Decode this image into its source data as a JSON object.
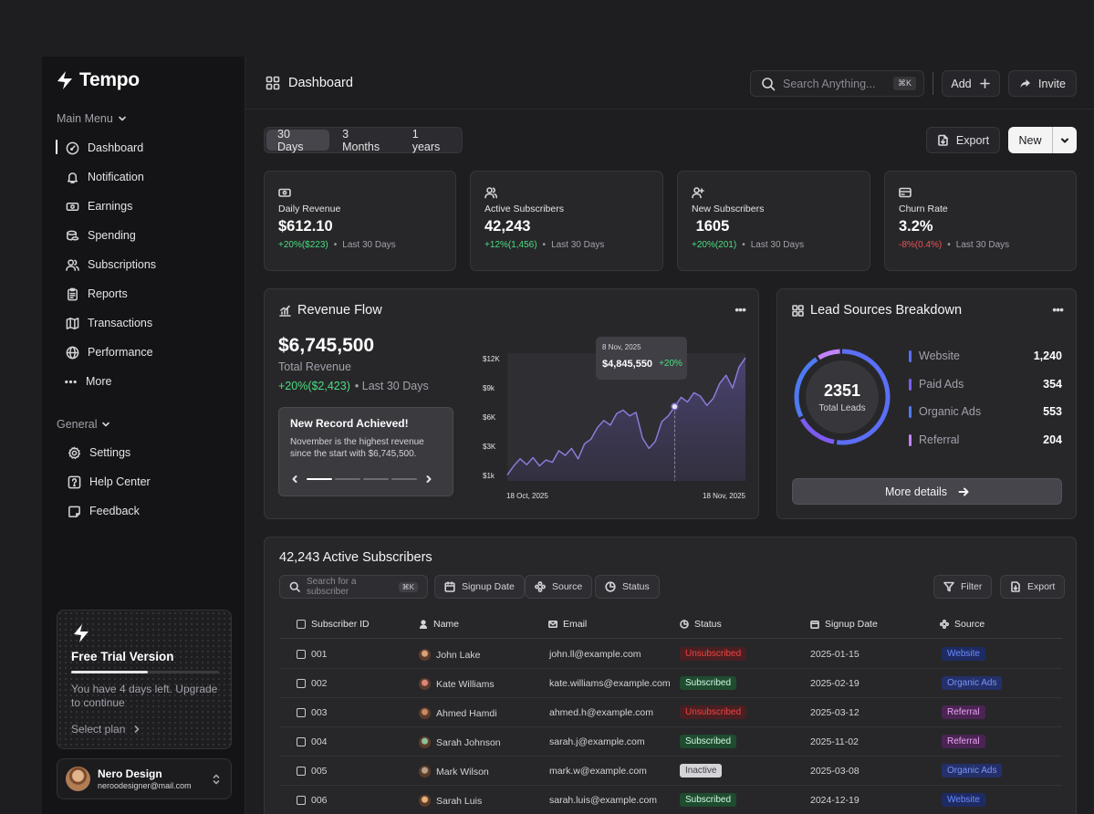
{
  "app": {
    "name": "Tempo"
  },
  "sidebar": {
    "main_menu_label": "Main Menu",
    "items": [
      {
        "label": "Dashboard",
        "icon": "dashboard-icon"
      },
      {
        "label": "Notification",
        "icon": "bell-icon"
      },
      {
        "label": "Earnings",
        "icon": "money-icon"
      },
      {
        "label": "Spending",
        "icon": "coins-icon"
      },
      {
        "label": "Subscriptions",
        "icon": "users-icon"
      },
      {
        "label": "Reports",
        "icon": "clipboard-icon"
      },
      {
        "label": "Transactions",
        "icon": "map-icon"
      },
      {
        "label": "Performance",
        "icon": "globe-icon"
      },
      {
        "label": "More",
        "icon": "more-icon"
      }
    ],
    "general_label": "General",
    "general_items": [
      {
        "label": "Settings",
        "icon": "gear-icon"
      },
      {
        "label": "Help Center",
        "icon": "help-icon"
      },
      {
        "label": "Feedback",
        "icon": "feedback-icon"
      }
    ],
    "trial": {
      "title": "Free Trial Version",
      "progress": 0.52,
      "text": "You have 4 days left. Upgrade to continue",
      "link": "Select plan"
    },
    "user": {
      "name": "Nero Design",
      "email": "neroodesigner@mail.com"
    }
  },
  "header": {
    "title": "Dashboard",
    "search_placeholder": "Search Anything...",
    "search_shortcut": "⌘K",
    "add_label": "Add",
    "invite_label": "Invite"
  },
  "toolbar": {
    "ranges": [
      "30 Days",
      "3 Months",
      "1 years"
    ],
    "export_label": "Export",
    "new_label": "New"
  },
  "kpis": [
    {
      "label": "Daily Revenue",
      "value": "$612.10",
      "change": "+20%($223)",
      "period": "Last 30 Days",
      "trend": "up"
    },
    {
      "label": "Active Subscribers",
      "value": "42,243",
      "change": "+12%(1,456)",
      "period": "Last 30 Days",
      "trend": "up"
    },
    {
      "label": "New Subscribers",
      "value": " 1605",
      "change": "+20%(201)",
      "period": "Last 30 Days",
      "trend": "up"
    },
    {
      "label": "Churn Rate",
      "value": "3.2%",
      "change": "-8%(0.4%)",
      "period": "Last 30 Days",
      "trend": "down"
    }
  ],
  "revenue": {
    "title": "Revenue Flow",
    "amount": "$6,745,500",
    "amount_label": "Total Revenue",
    "change": "+20%($2,423)",
    "period": "• Last 30 Days",
    "record_title": "New Record Achieved!",
    "record_text": "November is the highest revenue since the start with $6,745,500.",
    "tooltip_date": "8 Nov, 2025",
    "tooltip_value": "$4,845,550",
    "tooltip_change": "+20%"
  },
  "chart_data": {
    "type": "area",
    "yticks": [
      "$12K",
      "$9k",
      "$6K",
      "$3K",
      "$1k"
    ],
    "ylim": [
      1000,
      12000
    ],
    "xlabels": [
      "18 Oct, 2025",
      "18 Nov, 2025"
    ],
    "values": [
      1500,
      2300,
      2900,
      2400,
      3000,
      2300,
      2800,
      2600,
      3600,
      3200,
      3800,
      2900,
      4200,
      4600,
      5600,
      6200,
      5800,
      6800,
      7100,
      6600,
      6900,
      4700,
      3800,
      4400,
      6100,
      6600,
      7400,
      8200,
      7800,
      8600,
      8300,
      7500,
      8100,
      9400,
      10100,
      9000,
      10800,
      11600
    ],
    "highlight_index": 26,
    "color": "#8b7bd8"
  },
  "leads": {
    "title": "Lead Sources Breakdown",
    "total": "2351",
    "total_label": "Total Leads",
    "sources": [
      {
        "name": "Website",
        "value": "1,240",
        "color": "#5b6ef5"
      },
      {
        "name": "Paid Ads",
        "value": "354",
        "color": "#7c5cf0"
      },
      {
        "name": "Organic Ads",
        "value": "553",
        "color": "#4f7bf0"
      },
      {
        "name": "Referral",
        "value": "204",
        "color": "#c084fc"
      }
    ],
    "more_label": "More details"
  },
  "subscribers": {
    "title": "42,243 Active Subscribers",
    "search_placeholder": "Search for a subscriber",
    "search_shortcut": "⌘K",
    "filters": [
      "Signup Date",
      "Source",
      "Status"
    ],
    "filter_label": "Filter",
    "export_label": "Export",
    "columns": [
      "Subscriber ID",
      "Name",
      "Email",
      "Status",
      "Signup Date",
      "Source"
    ],
    "rows": [
      {
        "id": "001",
        "name": "John Lake",
        "email": "john.ll@example.com",
        "status": "Unsubscribed",
        "date": "2025-01-15",
        "source": "Website"
      },
      {
        "id": "002",
        "name": "Kate Williams",
        "email": "kate.williams@example.com",
        "status": "Subscribed",
        "date": "2025-02-19",
        "source": "Organic Ads"
      },
      {
        "id": "003",
        "name": "Ahmed Hamdi",
        "email": "ahmed.h@example.com",
        "status": "Unsubscribed",
        "date": "2025-03-12",
        "source": "Referral"
      },
      {
        "id": "004",
        "name": "Sarah Johnson",
        "email": "sarah.j@example.com",
        "status": "Subscribed",
        "date": "2025-11-02",
        "source": "Referral"
      },
      {
        "id": "005",
        "name": "Mark Wilson",
        "email": "mark.w@example.com",
        "status": "Inactive",
        "date": "2025-03-08",
        "source": "Organic Ads"
      },
      {
        "id": "006",
        "name": "Sarah Luis",
        "email": "sarah.luis@example.com",
        "status": "Subscribed",
        "date": "2024-12-19",
        "source": "Website"
      }
    ]
  }
}
